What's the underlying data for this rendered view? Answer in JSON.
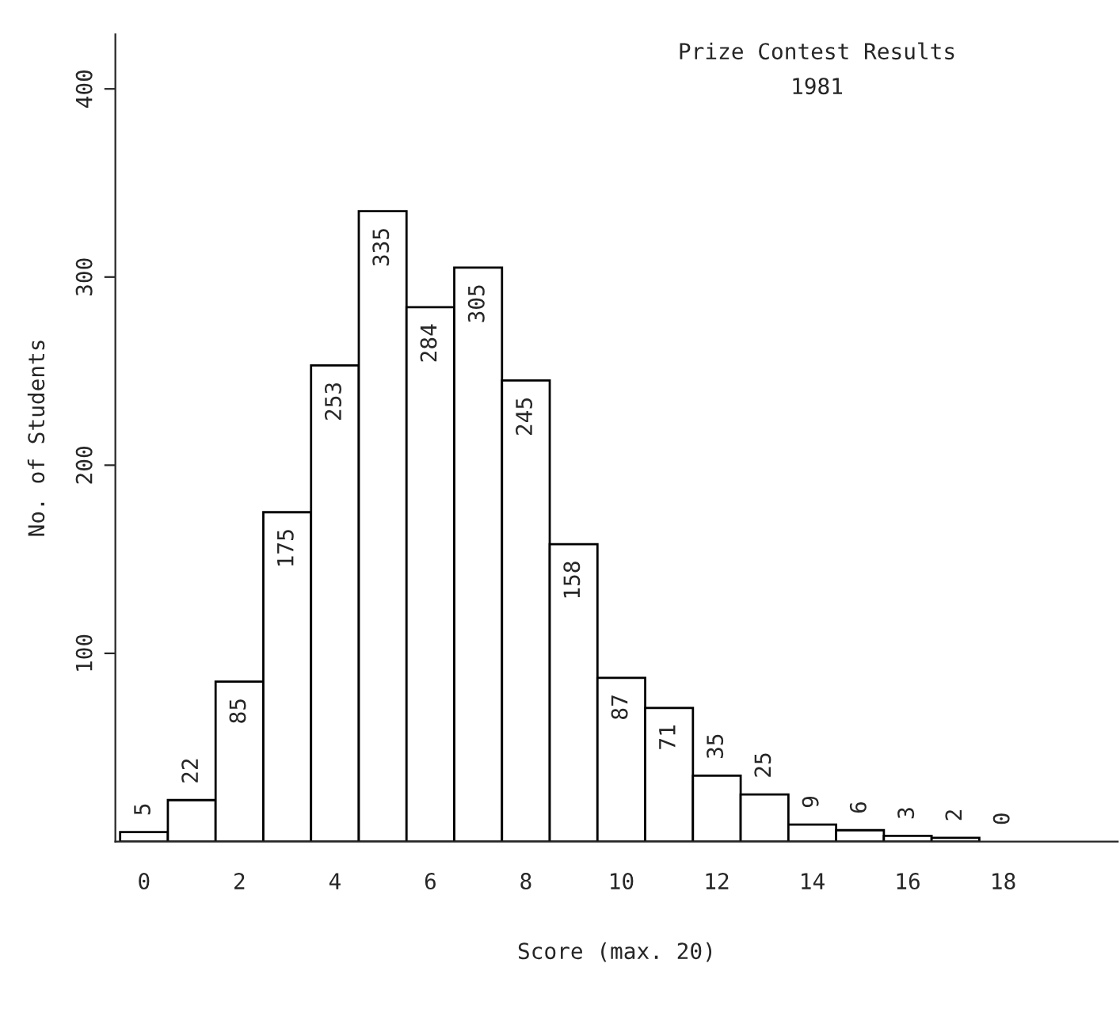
{
  "chart_data": {
    "type": "histogram",
    "title": "Prize Contest Results\n1981",
    "xlabel": "Score (max. 20)",
    "ylabel": "No. of Students",
    "bins": [
      -0.5,
      0.5,
      1.5,
      2.5,
      3.5,
      4.5,
      5.5,
      6.5,
      7.5,
      8.5,
      9.5,
      10.5,
      11.5,
      12.5,
      13.5,
      14.5,
      15.5,
      16.5,
      17.5,
      18.5
    ],
    "values": [
      5,
      22,
      85,
      175,
      253,
      335,
      284,
      305,
      245,
      158,
      87,
      71,
      35,
      25,
      9,
      6,
      3,
      2,
      0
    ],
    "color": "#ffffff",
    "data_labels": true,
    "grid": false,
    "xlim": [
      -0.6,
      20.4
    ],
    "xticks": [
      0,
      2,
      4,
      6,
      8,
      10,
      12,
      14,
      16,
      18
    ],
    "ylim": [
      0,
      429
    ],
    "yticks": [
      100,
      200,
      300,
      400
    ]
  }
}
